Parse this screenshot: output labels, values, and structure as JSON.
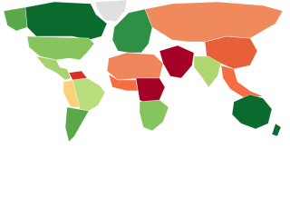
{
  "map": {
    "regions": [
      {
        "color": "#e0e0e0"
      },
      {
        "color": "#0b6b2f"
      },
      {
        "color": "#5aa84a"
      },
      {
        "color": "#86c45e"
      },
      {
        "color": "#a6d36f"
      },
      {
        "color": "#b9de7e"
      },
      {
        "color": "#d73027"
      },
      {
        "color": "#fdd17a"
      },
      {
        "color": "#5aa84a"
      },
      {
        "color": "#2f8f46"
      },
      {
        "color": "#f0845a"
      },
      {
        "color": "#a50026"
      },
      {
        "color": "#f46d43"
      },
      {
        "color": "#a50026"
      },
      {
        "color": "#86c45e"
      },
      {
        "color": "#e8603a"
      },
      {
        "color": "#b0d66f"
      },
      {
        "color": "#f46d43"
      },
      {
        "color": "#0b6b2f"
      },
      {
        "color": "#0b6b2f"
      },
      {
        "color": "#f08a5d"
      }
    ]
  }
}
